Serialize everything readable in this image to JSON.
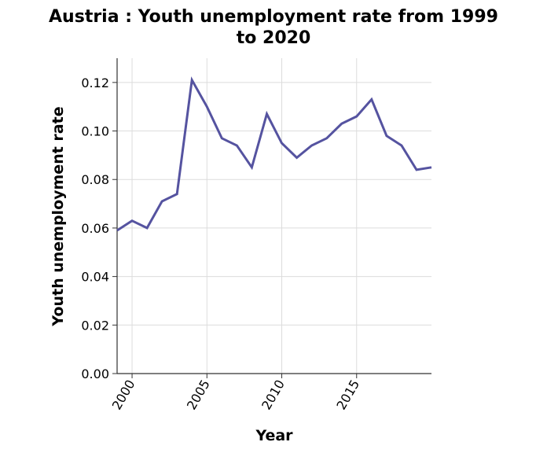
{
  "chart_data": {
    "type": "line",
    "title_line1": "Austria : Youth unemployment rate from 1999",
    "title_line2": "to 2020",
    "xlabel": "Year",
    "ylabel": "Youth unemployment rate",
    "xlim": [
      1999,
      2020
    ],
    "ylim": [
      0,
      0.13
    ],
    "x_ticks": [
      2000,
      2005,
      2010,
      2015
    ],
    "y_ticks": [
      "0.00",
      "0.02",
      "0.04",
      "0.06",
      "0.08",
      "0.10",
      "0.12"
    ],
    "grid": true,
    "series": [
      {
        "color": "#5553a0",
        "x": [
          1999,
          2000,
          2001,
          2002,
          2003,
          2004,
          2005,
          2006,
          2007,
          2008,
          2009,
          2010,
          2011,
          2012,
          2013,
          2014,
          2015,
          2016,
          2017,
          2018,
          2019,
          2020
        ],
        "y": [
          0.059,
          0.063,
          0.06,
          0.071,
          0.074,
          0.121,
          0.11,
          0.097,
          0.094,
          0.085,
          0.107,
          0.095,
          0.089,
          0.094,
          0.097,
          0.103,
          0.106,
          0.113,
          0.098,
          0.094,
          0.084,
          0.085
        ]
      }
    ]
  }
}
